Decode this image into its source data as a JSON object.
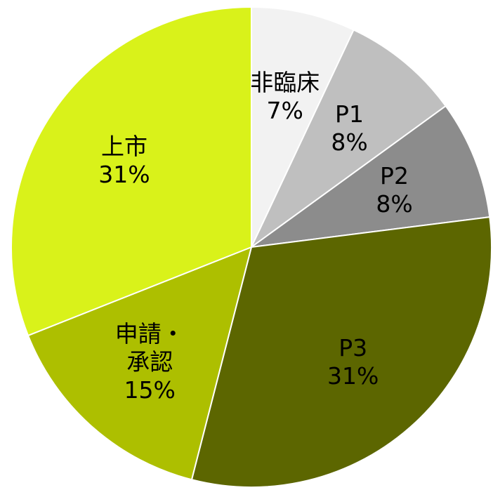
{
  "chart_data": {
    "type": "pie",
    "categories": [
      "非臨床",
      "P1",
      "P2",
      "P3",
      "申請・承認",
      "上市"
    ],
    "values": [
      7,
      8,
      8,
      31,
      15,
      31
    ],
    "value_labels": [
      "7%",
      "8%",
      "8%",
      "31%",
      "15%",
      "31%"
    ],
    "colors": [
      "#f2f2f2",
      "#bfbfbf",
      "#8c8c8c",
      "#5c6600",
      "#adbf00",
      "#d9f21a"
    ]
  }
}
